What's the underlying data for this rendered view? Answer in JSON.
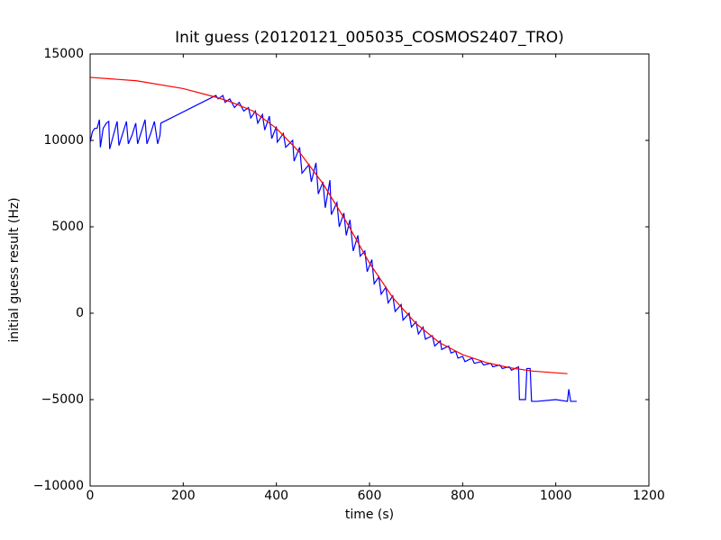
{
  "chart_data": {
    "type": "line",
    "title": "Init guess (20120121_005035_COSMOS2407_TRO)",
    "xlabel": "time (s)",
    "ylabel": "initial guess result (Hz)",
    "xlim": [
      0,
      1200
    ],
    "xticks": [
      0,
      200,
      400,
      600,
      800,
      1000,
      1200
    ],
    "ylim": [
      -10000,
      15000
    ],
    "yticks": [
      {
        "value": -10000,
        "label": "−10000"
      },
      {
        "value": -5000,
        "label": "−5000"
      },
      0,
      5000,
      10000,
      15000
    ],
    "series": [
      {
        "color": "#0000ff",
        "x": [
          0,
          5,
          10,
          15,
          20,
          22,
          28,
          35,
          40,
          42,
          50,
          58,
          62,
          70,
          78,
          82,
          90,
          98,
          102,
          110,
          118,
          122,
          130,
          138,
          145,
          150,
          152,
          270,
          275,
          285,
          290,
          300,
          310,
          320,
          330,
          340,
          345,
          355,
          360,
          370,
          375,
          385,
          390,
          400,
          402,
          415,
          420,
          435,
          438,
          450,
          455,
          470,
          475,
          485,
          490,
          500,
          505,
          515,
          518,
          530,
          535,
          545,
          550,
          558,
          565,
          575,
          580,
          590,
          595,
          605,
          610,
          620,
          625,
          635,
          640,
          650,
          655,
          668,
          672,
          685,
          690,
          700,
          705,
          715,
          720,
          735,
          740,
          752,
          755,
          770,
          775,
          785,
          790,
          800,
          805,
          820,
          825,
          840,
          845,
          860,
          865,
          880,
          885,
          900,
          905,
          920,
          922,
          935,
          938,
          945,
          948,
          960,
          1000,
          1025,
          1028,
          1032,
          1045
        ],
        "values": [
          9900,
          10500,
          10700,
          10700,
          11200,
          9600,
          10700,
          11000,
          11100,
          9500,
          10300,
          11100,
          9700,
          10400,
          11100,
          9800,
          10300,
          11000,
          9800,
          10500,
          11200,
          9800,
          10400,
          11100,
          9800,
          10300,
          11000,
          12600,
          12400,
          12600,
          12200,
          12400,
          11900,
          12200,
          11700,
          11900,
          11300,
          11700,
          11000,
          11500,
          10600,
          11400,
          10100,
          10800,
          9900,
          10400,
          9600,
          10000,
          8800,
          9600,
          8100,
          8600,
          7600,
          8700,
          6900,
          7600,
          6100,
          7700,
          5700,
          6400,
          5000,
          5800,
          4500,
          5400,
          3600,
          4500,
          3300,
          3600,
          2400,
          3100,
          1700,
          2100,
          1100,
          1500,
          600,
          1000,
          100,
          500,
          -400,
          0,
          -800,
          -500,
          -1200,
          -800,
          -1500,
          -1300,
          -1900,
          -1600,
          -2100,
          -1900,
          -2300,
          -2200,
          -2600,
          -2500,
          -2800,
          -2600,
          -2900,
          -2800,
          -3000,
          -2900,
          -3100,
          -3000,
          -3200,
          -3100,
          -3300,
          -3100,
          -5000,
          -5000,
          -3200,
          -3200,
          -5100,
          -5100,
          -5000,
          -5100,
          -4400,
          -5100,
          -5100
        ]
      },
      {
        "color": "#ff0000",
        "x": [
          0,
          100,
          200,
          270,
          300,
          350,
          400,
          450,
          500,
          550,
          600,
          650,
          700,
          750,
          800,
          850,
          900,
          950,
          1025
        ],
        "values": [
          13650,
          13450,
          13000,
          12500,
          12250,
          11700,
          10700,
          9300,
          7500,
          5300,
          2900,
          900,
          -600,
          -1700,
          -2400,
          -2850,
          -3150,
          -3350,
          -3500
        ]
      }
    ]
  }
}
